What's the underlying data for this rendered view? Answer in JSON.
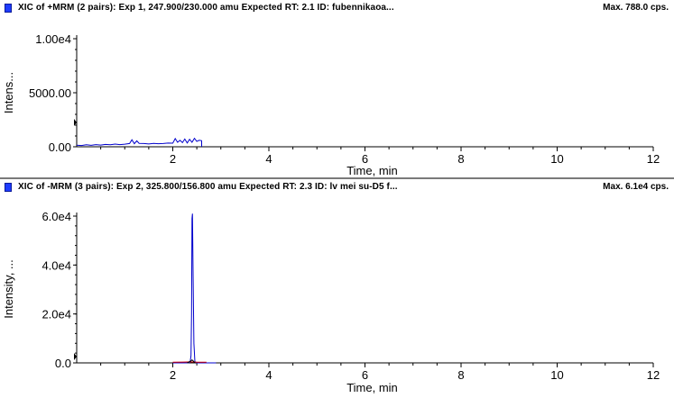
{
  "panels": [
    {
      "title": "XIC of +MRM (2 pairs): Exp 1, 247.900/230.000 amu Expected RT: 2.1 ID: fubennikaoa...",
      "max": "Max. 788.0 cps.",
      "ylabel": "Intens...",
      "xlabel": "Time, min",
      "ytick_labels": [
        "0.00",
        "5000.00",
        "1.00e4"
      ],
      "xtick_labels": [
        "2",
        "4",
        "6",
        "8",
        "10",
        "12"
      ]
    },
    {
      "title": "XIC of -MRM (3 pairs): Exp 2, 325.800/156.800 amu Expected RT: 2.3 ID: lv mei su-D5 f...",
      "max": "Max. 6.1e4 cps.",
      "ylabel": "Intensity, ...",
      "xlabel": "Time, min",
      "ytick_labels": [
        "0.0",
        "2.0e4",
        "4.0e4",
        "6.0e4"
      ],
      "xtick_labels": [
        "2",
        "4",
        "6",
        "8",
        "10",
        "12"
      ]
    }
  ],
  "chart_data": [
    {
      "type": "line",
      "title": "XIC of +MRM (2 pairs): Exp 1, 247.900/230.000 amu Expected RT: 2.1 ID: fubennikaoa...",
      "xlabel": "Time, min",
      "ylabel": "Intens...",
      "xlim": [
        0,
        12
      ],
      "ylim": [
        0,
        10000
      ],
      "xticks": [
        2,
        4,
        6,
        8,
        10,
        12
      ],
      "yticks": [
        0,
        5000,
        10000
      ],
      "grid": false,
      "series": [
        {
          "color": "#0000cc",
          "x": [
            0.0,
            0.1,
            0.2,
            0.3,
            0.4,
            0.5,
            0.6,
            0.7,
            0.8,
            0.9,
            1.0,
            1.1,
            1.15,
            1.2,
            1.25,
            1.3,
            1.4,
            1.5,
            1.6,
            1.7,
            1.8,
            1.9,
            2.0,
            2.05,
            2.1,
            2.15,
            2.2,
            2.25,
            2.3,
            2.35,
            2.4,
            2.45,
            2.5,
            2.55,
            2.6,
            2.6
          ],
          "y": [
            150,
            120,
            180,
            130,
            200,
            160,
            220,
            180,
            250,
            200,
            240,
            300,
            650,
            280,
            550,
            320,
            300,
            260,
            320,
            280,
            300,
            340,
            330,
            760,
            420,
            600,
            380,
            720,
            350,
            690,
            420,
            780,
            500,
            600,
            560,
            0
          ]
        }
      ]
    },
    {
      "type": "line",
      "title": "XIC of -MRM (3 pairs): Exp 2, 325.800/156.800 amu Expected RT: 2.3 ID: lv mei su-D5 f...",
      "xlabel": "Time, min",
      "ylabel": "Intensity, ...",
      "xlim": [
        0,
        12
      ],
      "ylim": [
        0,
        60000
      ],
      "xticks": [
        2,
        4,
        6,
        8,
        10,
        12
      ],
      "yticks": [
        0,
        20000,
        40000,
        60000
      ],
      "grid": false,
      "series": [
        {
          "color": "#0000cc",
          "x": [
            2.0,
            2.3,
            2.36,
            2.38,
            2.39,
            2.4,
            2.41,
            2.42,
            2.44,
            2.46,
            2.5,
            2.9
          ],
          "y": [
            0,
            0,
            200,
            3000,
            20000,
            59000,
            61000,
            40000,
            8000,
            500,
            0,
            0
          ]
        },
        {
          "color": "#cc0000",
          "x": [
            2.0,
            2.2,
            2.3,
            2.35,
            2.4,
            2.45,
            2.5,
            2.7
          ],
          "y": [
            300,
            320,
            350,
            400,
            380,
            360,
            300,
            280
          ]
        },
        {
          "color": "#000000",
          "x": [
            2.3,
            2.38,
            2.4,
            2.42,
            2.46
          ],
          "y": [
            0,
            800,
            1200,
            900,
            0
          ]
        }
      ]
    }
  ]
}
